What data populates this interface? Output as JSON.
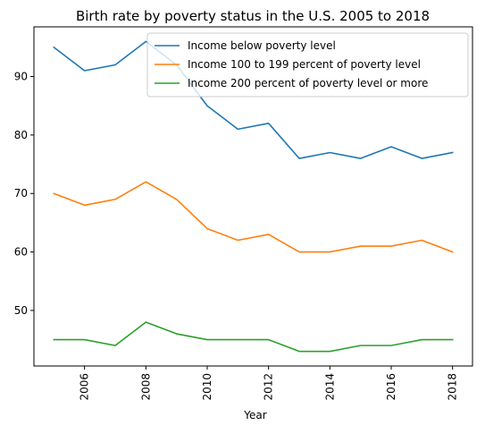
{
  "chart_data": {
    "type": "line",
    "title": "Birth rate by poverty status in the U.S. 2005 to 2018",
    "xlabel": "Year",
    "ylabel": "",
    "x": [
      2005,
      2006,
      2007,
      2008,
      2009,
      2010,
      2011,
      2012,
      2013,
      2014,
      2015,
      2016,
      2017,
      2018
    ],
    "xticks": [
      2006,
      2008,
      2010,
      2012,
      2014,
      2016,
      2018
    ],
    "yticks": [
      50,
      60,
      70,
      80,
      90
    ],
    "xlim": [
      2004.35,
      2018.65
    ],
    "ylim": [
      40.5,
      98.5
    ],
    "grid": false,
    "legend_position": "top-right",
    "series": [
      {
        "name": "Income below poverty level",
        "color": "#1f77b4",
        "values": [
          95,
          91,
          92,
          96,
          92,
          85,
          81,
          82,
          76,
          77,
          76,
          78,
          76,
          77
        ]
      },
      {
        "name": "Income 100 to 199 percent of poverty level",
        "color": "#ff7f0e",
        "values": [
          70,
          68,
          69,
          72,
          69,
          64,
          62,
          63,
          60,
          60,
          61,
          61,
          62,
          60
        ]
      },
      {
        "name": "Income 200 percent of poverty level or more",
        "color": "#2ca02c",
        "values": [
          45,
          45,
          44,
          48,
          46,
          45,
          45,
          45,
          43,
          43,
          44,
          44,
          45,
          45
        ]
      }
    ]
  }
}
